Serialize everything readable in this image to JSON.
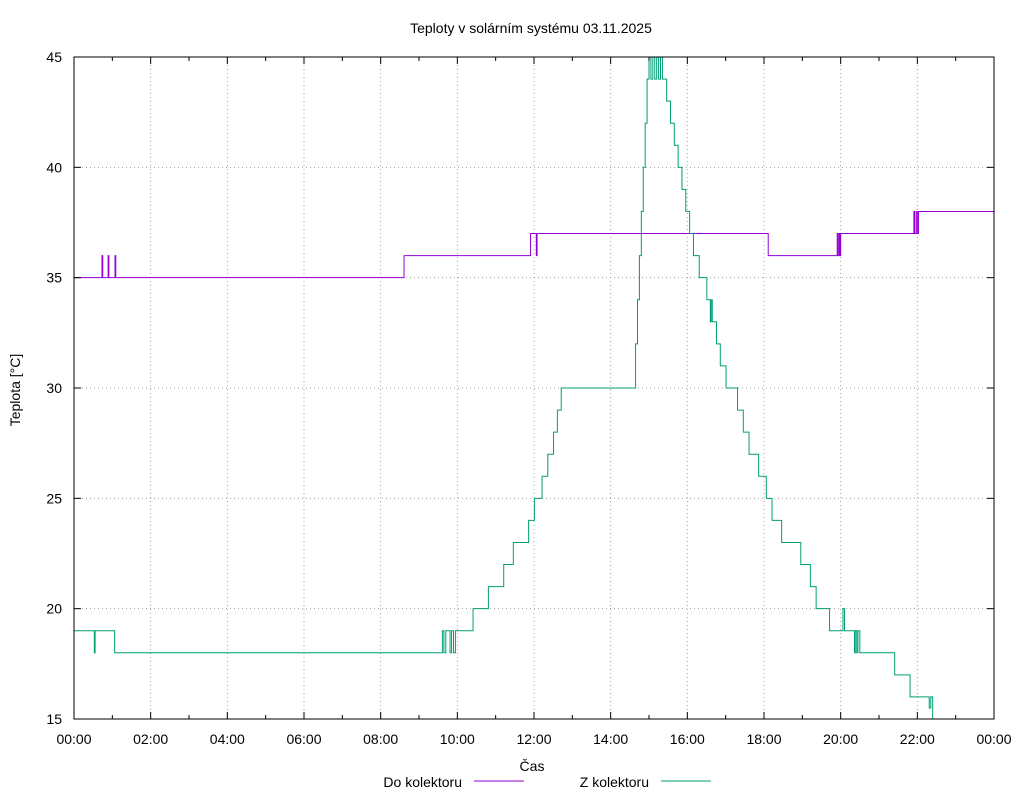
{
  "chart_data": {
    "type": "line",
    "title": "Teploty v solárním systému 03.11.2025",
    "xlabel": "Čas",
    "ylabel": "Teplota [°C]",
    "xlim": [
      0,
      24
    ],
    "ylim": [
      15,
      45
    ],
    "grid": true,
    "legend_position": "bottom-center",
    "x_tick_values": [
      0,
      2,
      4,
      6,
      8,
      10,
      12,
      14,
      16,
      18,
      20,
      22,
      24
    ],
    "x_tick_labels": [
      "00:00",
      "02:00",
      "04:00",
      "06:00",
      "08:00",
      "10:00",
      "12:00",
      "14:00",
      "16:00",
      "18:00",
      "20:00",
      "22:00",
      "00:00"
    ],
    "y_tick_values": [
      15,
      20,
      25,
      30,
      35,
      40,
      45
    ],
    "y_tick_labels": [
      "15",
      "20",
      "25",
      "30",
      "35",
      "40",
      "45"
    ],
    "series": [
      {
        "name": "Do kolektoru",
        "color": "#9400d3",
        "points": [
          [
            0,
            35
          ],
          [
            0.72,
            35
          ],
          [
            0.73,
            36
          ],
          [
            0.75,
            35
          ],
          [
            0.88,
            35
          ],
          [
            0.89,
            36
          ],
          [
            0.91,
            35
          ],
          [
            1.06,
            35
          ],
          [
            1.07,
            36
          ],
          [
            1.09,
            35
          ],
          [
            8.6,
            35
          ],
          [
            8.61,
            36
          ],
          [
            11.9,
            36
          ],
          [
            11.91,
            37
          ],
          [
            12.05,
            37
          ],
          [
            12.06,
            36
          ],
          [
            12.08,
            37
          ],
          [
            18.1,
            37
          ],
          [
            18.11,
            36
          ],
          [
            19.9,
            36
          ],
          [
            19.91,
            37
          ],
          [
            19.93,
            36
          ],
          [
            19.96,
            37
          ],
          [
            19.98,
            36
          ],
          [
            20.0,
            37
          ],
          [
            21.9,
            37
          ],
          [
            21.91,
            38
          ],
          [
            21.93,
            37
          ],
          [
            21.97,
            38
          ],
          [
            22.0,
            37
          ],
          [
            22.03,
            38
          ],
          [
            24,
            38
          ]
        ]
      },
      {
        "name": "Z kolektoru",
        "color": "#009e73",
        "points": [
          [
            0,
            19
          ],
          [
            0.52,
            19
          ],
          [
            0.53,
            18
          ],
          [
            0.55,
            19
          ],
          [
            1.05,
            19
          ],
          [
            1.06,
            18
          ],
          [
            9.6,
            18
          ],
          [
            9.61,
            19
          ],
          [
            9.65,
            18
          ],
          [
            9.7,
            19
          ],
          [
            9.8,
            19
          ],
          [
            9.81,
            18
          ],
          [
            9.85,
            19
          ],
          [
            9.9,
            18
          ],
          [
            9.95,
            19
          ],
          [
            10.4,
            19
          ],
          [
            10.41,
            20
          ],
          [
            10.8,
            20
          ],
          [
            10.81,
            21
          ],
          [
            11.2,
            21
          ],
          [
            11.21,
            22
          ],
          [
            11.45,
            22
          ],
          [
            11.46,
            23
          ],
          [
            11.85,
            23
          ],
          [
            11.86,
            24
          ],
          [
            12.0,
            24
          ],
          [
            12.01,
            25
          ],
          [
            12.2,
            25
          ],
          [
            12.21,
            26
          ],
          [
            12.35,
            26
          ],
          [
            12.36,
            27
          ],
          [
            12.5,
            27
          ],
          [
            12.51,
            28
          ],
          [
            12.6,
            28
          ],
          [
            12.61,
            29
          ],
          [
            12.7,
            29
          ],
          [
            12.71,
            30
          ],
          [
            14.6,
            30
          ],
          [
            14.65,
            32
          ],
          [
            14.7,
            34
          ],
          [
            14.75,
            36
          ],
          [
            14.8,
            38
          ],
          [
            14.85,
            40
          ],
          [
            14.9,
            42
          ],
          [
            14.95,
            44
          ],
          [
            15.0,
            45
          ],
          [
            15.05,
            44
          ],
          [
            15.1,
            45
          ],
          [
            15.15,
            44
          ],
          [
            15.2,
            45
          ],
          [
            15.25,
            44
          ],
          [
            15.3,
            45
          ],
          [
            15.35,
            44
          ],
          [
            15.45,
            44
          ],
          [
            15.46,
            43
          ],
          [
            15.55,
            43
          ],
          [
            15.56,
            42
          ],
          [
            15.65,
            42
          ],
          [
            15.66,
            41
          ],
          [
            15.75,
            41
          ],
          [
            15.76,
            40
          ],
          [
            15.85,
            40
          ],
          [
            15.86,
            39
          ],
          [
            15.95,
            39
          ],
          [
            15.96,
            38
          ],
          [
            16.05,
            38
          ],
          [
            16.06,
            37
          ],
          [
            16.15,
            37
          ],
          [
            16.16,
            36
          ],
          [
            16.3,
            36
          ],
          [
            16.31,
            35
          ],
          [
            16.5,
            35
          ],
          [
            16.51,
            34
          ],
          [
            16.58,
            34
          ],
          [
            16.6,
            33
          ],
          [
            16.62,
            34
          ],
          [
            16.65,
            33
          ],
          [
            16.75,
            33
          ],
          [
            16.76,
            32
          ],
          [
            16.85,
            32
          ],
          [
            16.86,
            31
          ],
          [
            17.0,
            31
          ],
          [
            17.01,
            30
          ],
          [
            17.3,
            30
          ],
          [
            17.31,
            29
          ],
          [
            17.45,
            29
          ],
          [
            17.46,
            28
          ],
          [
            17.6,
            28
          ],
          [
            17.61,
            27
          ],
          [
            17.85,
            27
          ],
          [
            17.86,
            26
          ],
          [
            18.05,
            26
          ],
          [
            18.06,
            25
          ],
          [
            18.2,
            25
          ],
          [
            18.21,
            24
          ],
          [
            18.45,
            24
          ],
          [
            18.46,
            23
          ],
          [
            18.95,
            23
          ],
          [
            18.96,
            22
          ],
          [
            19.2,
            22
          ],
          [
            19.21,
            21
          ],
          [
            19.35,
            21
          ],
          [
            19.36,
            20
          ],
          [
            19.7,
            20
          ],
          [
            19.71,
            19
          ],
          [
            20.05,
            19
          ],
          [
            20.06,
            20
          ],
          [
            20.1,
            19
          ],
          [
            20.35,
            19
          ],
          [
            20.36,
            18
          ],
          [
            20.38,
            19
          ],
          [
            20.42,
            18
          ],
          [
            20.45,
            19
          ],
          [
            20.5,
            18
          ],
          [
            21.4,
            18
          ],
          [
            21.41,
            17
          ],
          [
            21.8,
            17
          ],
          [
            21.81,
            16
          ],
          [
            22.3,
            16
          ],
          [
            22.31,
            15.5
          ],
          [
            22.35,
            16
          ],
          [
            22.4,
            15
          ]
        ]
      }
    ]
  }
}
